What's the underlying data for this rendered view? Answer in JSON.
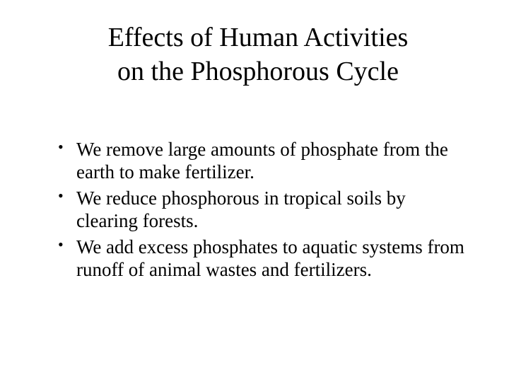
{
  "title_line1": "Effects of Human Activities",
  "title_line2": "on the Phosphorous Cycle",
  "bullets": [
    "We remove large amounts of phosphate from the earth to make fertilizer.",
    "We reduce phosphorous in tropical soils by clearing forests.",
    "We add excess phosphates to aquatic systems from runoff of animal wastes and fertilizers."
  ],
  "colors": {
    "background": "#ffffff",
    "text": "#000000"
  },
  "typography": {
    "font_family": "Times New Roman",
    "title_fontsize": 38,
    "body_fontsize": 27
  }
}
